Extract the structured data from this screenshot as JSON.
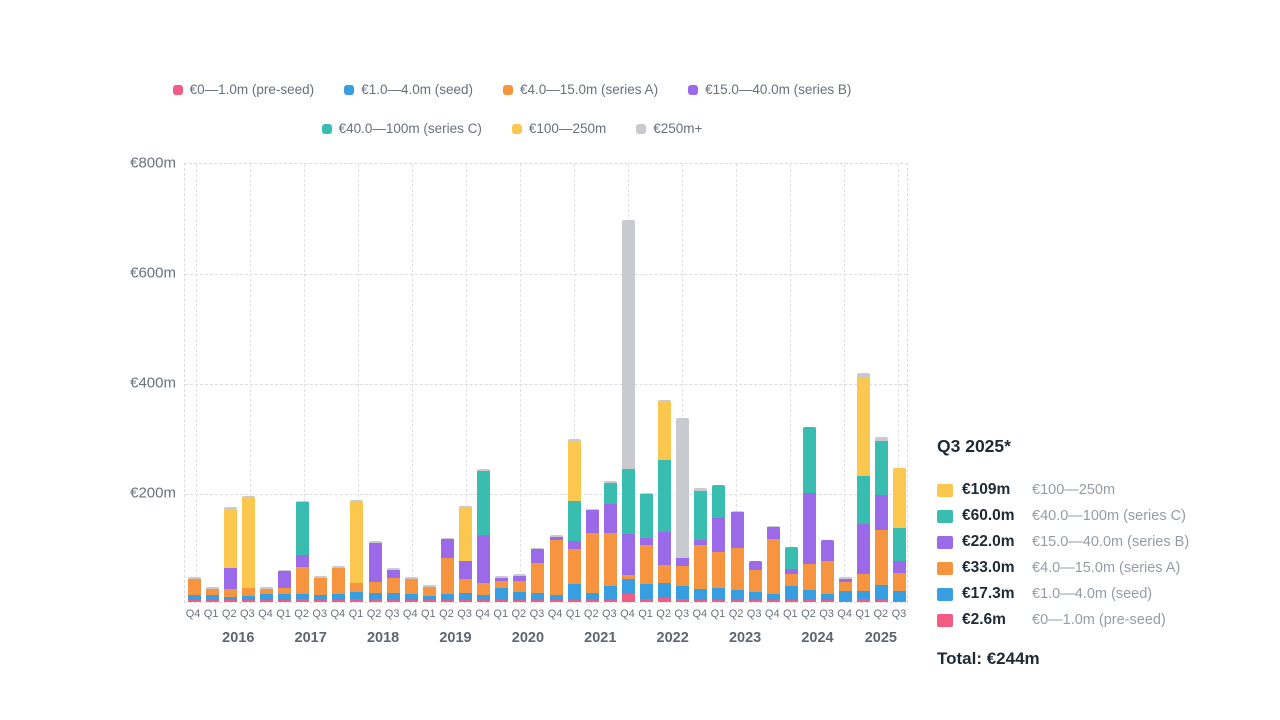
{
  "colors": {
    "pre_seed": "#f25c84",
    "seed": "#379ee2",
    "series_a": "#f7943f",
    "series_b": "#9b6ae9",
    "series_c": "#39bdb1",
    "m100_250": "#fbc74f",
    "m250_plus": "#c8cacf"
  },
  "legend": {
    "row1": [
      {
        "key": "pre_seed",
        "label": "€0—1.0m (pre-seed)"
      },
      {
        "key": "seed",
        "label": "€1.0—4.0m (seed)"
      },
      {
        "key": "series_a",
        "label": "€4.0—15.0m (series A)"
      },
      {
        "key": "series_b",
        "label": "€15.0—40.0m (series B)"
      }
    ],
    "row2": [
      {
        "key": "series_c",
        "label": "€40.0—100m (series C)"
      },
      {
        "key": "m100_250",
        "label": "€100—250m"
      },
      {
        "key": "m250_plus",
        "label": "€250m+"
      }
    ]
  },
  "chart_data": {
    "type": "bar",
    "subtype": "stacked",
    "unit": "EUR millions per quarter",
    "ylim": [
      0,
      800
    ],
    "grid": "dashed",
    "y_ticks": [
      {
        "label": "€800m",
        "value": 800
      },
      {
        "label": "€600m",
        "value": 600
      },
      {
        "label": "€400m",
        "value": 400
      },
      {
        "label": "€200m",
        "value": 200
      }
    ],
    "quarters": [
      "Q4",
      "Q1",
      "Q2",
      "Q3",
      "Q4",
      "Q1",
      "Q2",
      "Q3",
      "Q4",
      "Q1",
      "Q2",
      "Q3",
      "Q4",
      "Q1",
      "Q2",
      "Q3",
      "Q4",
      "Q1",
      "Q2",
      "Q3",
      "Q4",
      "Q1",
      "Q2",
      "Q3",
      "Q4",
      "Q1",
      "Q2",
      "Q3",
      "Q4",
      "Q1",
      "Q2",
      "Q3",
      "Q4",
      "Q1",
      "Q2",
      "Q3",
      "Q4",
      "Q1",
      "Q2",
      "Q3"
    ],
    "years": [
      {
        "label": "2016",
        "start": 1,
        "end": 4
      },
      {
        "label": "2017",
        "start": 5,
        "end": 8
      },
      {
        "label": "2018",
        "start": 9,
        "end": 12
      },
      {
        "label": "2019",
        "start": 13,
        "end": 16
      },
      {
        "label": "2020",
        "start": 17,
        "end": 20
      },
      {
        "label": "2021",
        "start": 21,
        "end": 24
      },
      {
        "label": "2022",
        "start": 25,
        "end": 28
      },
      {
        "label": "2023",
        "start": 29,
        "end": 32
      },
      {
        "label": "2024",
        "start": 33,
        "end": 36
      },
      {
        "label": "2025",
        "start": 37,
        "end": 39
      }
    ],
    "series": [
      {
        "name": "€0—1.0m (pre-seed)",
        "key": "pre_seed",
        "values": [
          3,
          3,
          4,
          4,
          4,
          4,
          5,
          4,
          4,
          6,
          5,
          4,
          4,
          3,
          4,
          4,
          4,
          4,
          4,
          4,
          4,
          4,
          4,
          4,
          15,
          5,
          8,
          5,
          4,
          4,
          3,
          3,
          3,
          4,
          4,
          3,
          2,
          5,
          3,
          2.6
        ]
      },
      {
        "name": "€1.0—4.0m (seed)",
        "key": "seed",
        "values": [
          10,
          10,
          6,
          7,
          10,
          10,
          9,
          8,
          10,
          13,
          11,
          12,
          10,
          8,
          11,
          12,
          9,
          21,
          14,
          13,
          8,
          28,
          13,
          25,
          27,
          27,
          26,
          24,
          20,
          22,
          18,
          15,
          12,
          25,
          18,
          12,
          18,
          15,
          27,
          17.3
        ]
      },
      {
        "name": "€4.0—15.0m (series A)",
        "key": "series_a",
        "values": [
          28,
          10,
          13,
          15,
          10,
          12,
          50,
          32,
          48,
          16,
          20,
          28,
          28,
          16,
          65,
          25,
          21,
          14,
          20,
          53,
          101,
          64,
          109,
          97,
          7,
          72,
          34,
          36,
          80,
          65,
          78,
          40,
          100,
          22,
          48,
          60,
          16,
          30,
          100,
          33
        ]
      },
      {
        "name": "€15.0—40.0m (series B)",
        "key": "series_b",
        "values": [
          0,
          0,
          38,
          0,
          0,
          30,
          21,
          0,
          0,
          0,
          72,
          14,
          0,
          0,
          34,
          33,
          87,
          4,
          10,
          27,
          6,
          15,
          41,
          52,
          75,
          12,
          60,
          15,
          8,
          62,
          64,
          17,
          22,
          9,
          128,
          38,
          6,
          91,
          65,
          22
        ]
      },
      {
        "name": "€40.0—100m (series C)",
        "key": "series_c",
        "values": [
          0,
          0,
          0,
          0,
          0,
          0,
          96,
          0,
          0,
          0,
          0,
          0,
          0,
          0,
          0,
          0,
          117,
          0,
          0,
          0,
          0,
          73,
          0,
          39,
          118,
          80,
          130,
          0,
          90,
          60,
          0,
          0,
          0,
          40,
          120,
          0,
          0,
          88,
          98,
          60
        ]
      },
      {
        "name": "€100—250m",
        "key": "m100_250",
        "values": [
          0,
          0,
          108,
          164,
          0,
          0,
          0,
          0,
          0,
          147,
          0,
          0,
          0,
          0,
          0,
          99,
          0,
          0,
          0,
          0,
          0,
          109,
          0,
          0,
          0,
          0,
          105,
          0,
          0,
          0,
          0,
          0,
          0,
          0,
          0,
          0,
          0,
          180,
          0,
          109
        ]
      },
      {
        "name": "€250m+",
        "key": "m250_plus",
        "values": [
          5,
          4,
          3,
          3,
          4,
          3,
          3,
          4,
          4,
          3,
          2,
          3,
          4,
          3,
          2,
          2,
          4,
          5,
          3,
          1,
          2,
          3,
          2,
          2,
          453,
          2,
          4,
          254,
          6,
          0,
          3,
          0,
          2,
          0,
          0,
          0,
          3,
          8,
          7,
          0
        ]
      }
    ]
  },
  "panel": {
    "title": "Q3 2025*",
    "rows": [
      {
        "key": "m100_250",
        "value": "€109m",
        "label": "€100—250m"
      },
      {
        "key": "series_c",
        "value": "€60.0m",
        "label": "€40.0—100m (series C)"
      },
      {
        "key": "series_b",
        "value": "€22.0m",
        "label": "€15.0—40.0m (series B)"
      },
      {
        "key": "series_a",
        "value": "€33.0m",
        "label": "€4.0—15.0m (series A)"
      },
      {
        "key": "seed",
        "value": "€17.3m",
        "label": "€1.0—4.0m (seed)"
      },
      {
        "key": "pre_seed",
        "value": "€2.6m",
        "label": "€0—1.0m (pre-seed)"
      }
    ],
    "total": "Total: €244m"
  }
}
